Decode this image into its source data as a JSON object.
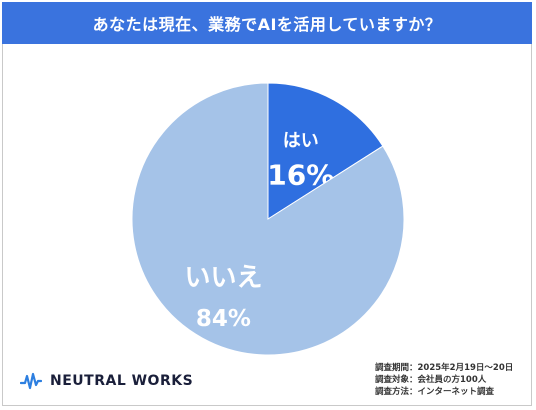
{
  "title": "あなたは現在、業務でAIを活用していますか？",
  "colors": {
    "accent": "#3a73de",
    "yes": "#2f6fe0",
    "no": "#a5c3e8"
  },
  "chart_data": {
    "type": "pie",
    "title": "あなたは現在、業務でAIを活用していますか？",
    "slices": [
      {
        "label": "はい",
        "value": 16,
        "value_label": "16%",
        "color": "#2f6fe0"
      },
      {
        "label": "いいえ",
        "value": 84,
        "value_label": "84%",
        "color": "#a5c3e8"
      }
    ],
    "start": "12 o'clock, clockwise"
  },
  "brand": {
    "name": "NEUTRAL WORKS",
    "logo_icon": "waveform-icon"
  },
  "survey": {
    "period": "調査期間：2025年2月19日～20日",
    "target": "調査対象：会社員の方100人",
    "method": "調査方法：インターネット調査"
  }
}
